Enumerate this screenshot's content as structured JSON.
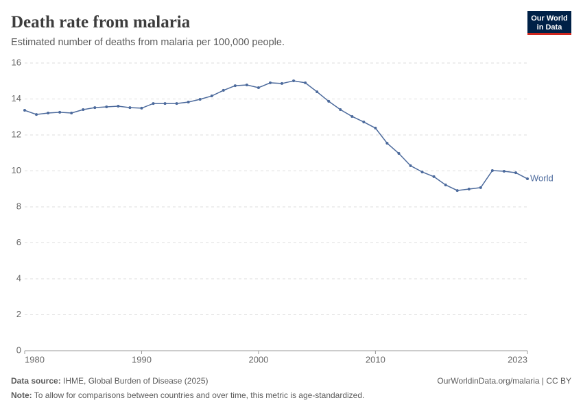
{
  "chart_data": {
    "type": "line",
    "title": "Death rate from malaria",
    "subtitle": "Estimated number of deaths from malaria per 100,000 people.",
    "x": [
      1980,
      1981,
      1982,
      1983,
      1984,
      1985,
      1986,
      1987,
      1988,
      1989,
      1990,
      1991,
      1992,
      1993,
      1994,
      1995,
      1996,
      1997,
      1998,
      1999,
      2000,
      2001,
      2002,
      2003,
      2004,
      2005,
      2006,
      2007,
      2008,
      2009,
      2010,
      2011,
      2012,
      2013,
      2014,
      2015,
      2016,
      2017,
      2018,
      2019,
      2020,
      2021,
      2022,
      2023
    ],
    "series": [
      {
        "name": "World",
        "color": "#4c6a9c",
        "values": [
          13.37,
          13.14,
          13.22,
          13.26,
          13.22,
          13.41,
          13.52,
          13.56,
          13.6,
          13.52,
          13.49,
          13.75,
          13.75,
          13.75,
          13.83,
          13.98,
          14.17,
          14.48,
          14.74,
          14.78,
          14.63,
          14.9,
          14.86,
          15.01,
          14.9,
          14.4,
          13.87,
          13.41,
          13.03,
          12.72,
          12.38,
          11.54,
          10.97,
          10.29,
          9.94,
          9.68,
          9.22,
          8.91,
          8.99,
          9.07,
          10.02,
          9.98,
          9.9,
          9.56
        ]
      }
    ],
    "xlim": [
      1980,
      2023
    ],
    "xticks": [
      1980,
      1990,
      2000,
      2010,
      2023
    ],
    "ylim": [
      0,
      16
    ],
    "yticks": [
      0,
      2,
      4,
      6,
      8,
      10,
      12,
      14,
      16
    ],
    "grid": true
  },
  "logo": [
    "Our World",
    "in Data"
  ],
  "source_label": "Data source:",
  "source": "IHME, Global Burden of Disease (2025)",
  "url": "OurWorldinData.org/malaria | CC BY",
  "note_label": "Note:",
  "note": "To allow for comparisons between countries and over time, this metric is age-standardized."
}
